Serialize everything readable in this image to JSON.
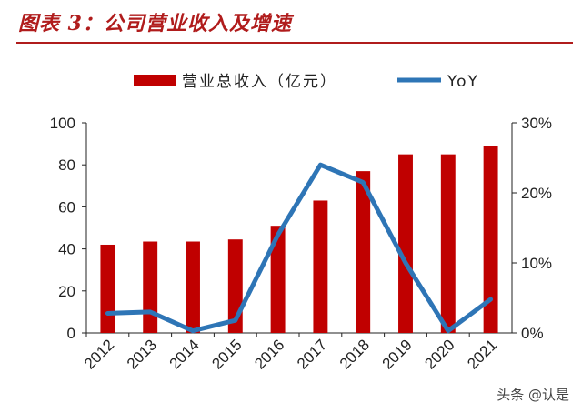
{
  "header": {
    "title": "图表 3：公司营业收入及增速"
  },
  "watermark": "头条 @认是",
  "chart_data": {
    "type": "bar",
    "categories": [
      "2012",
      "2013",
      "2014",
      "2015",
      "2016",
      "2017",
      "2018",
      "2019",
      "2020",
      "2021"
    ],
    "series": [
      {
        "name": "营业总收入（亿元）",
        "type": "bar",
        "axis": "left",
        "color": "#c00000",
        "values": [
          42,
          43.5,
          43.5,
          44.5,
          51,
          63,
          77,
          85,
          85,
          89
        ]
      },
      {
        "name": "YoY",
        "type": "line",
        "axis": "right",
        "color": "#2e75b6",
        "values": [
          2.8,
          3.0,
          0.3,
          1.8,
          14,
          24,
          21.5,
          10,
          0.3,
          4.8
        ]
      }
    ],
    "left_axis": {
      "ylim": [
        0,
        100
      ],
      "ticks": [
        "0",
        "20",
        "40",
        "60",
        "80",
        "100"
      ]
    },
    "right_axis": {
      "ylim": [
        0,
        30
      ],
      "ticks": [
        "0%",
        "10%",
        "20%",
        "30%"
      ]
    },
    "legend_position": "top",
    "grid": false
  }
}
